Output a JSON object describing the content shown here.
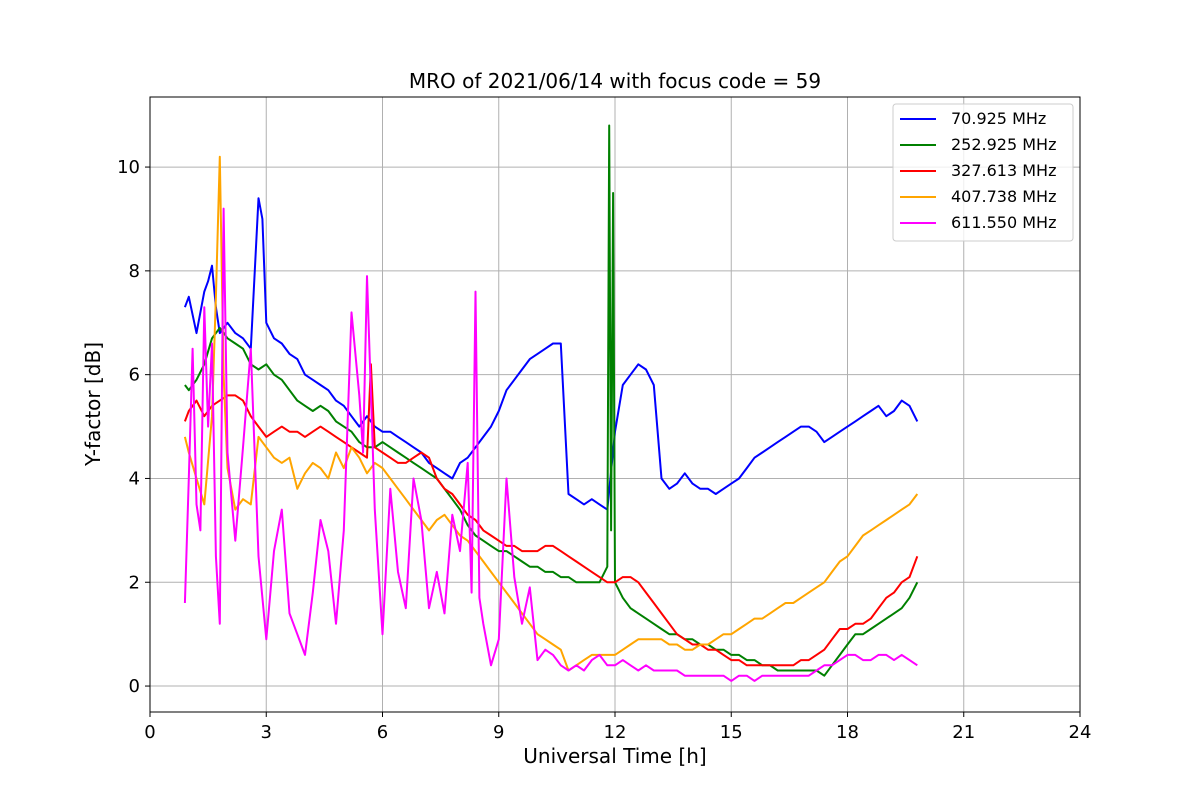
{
  "chart_data": {
    "type": "line",
    "title": "MRO of 2021/06/14 with focus code = 59",
    "xlabel": "Universal Time [h]",
    "ylabel": "Y-factor [dB]",
    "xlim": [
      0,
      24
    ],
    "ylim": [
      -0.5,
      11.35
    ],
    "xticks": [
      0,
      3,
      6,
      9,
      12,
      15,
      18,
      21,
      24
    ],
    "yticks": [
      0,
      2,
      4,
      6,
      8,
      10
    ],
    "xtick_labels": [
      "0",
      "3",
      "6",
      "9",
      "12",
      "15",
      "18",
      "21",
      "24"
    ],
    "ytick_labels": [
      "0",
      "2",
      "4",
      "6",
      "8",
      "10"
    ],
    "grid": true,
    "legend_position": "top-right",
    "series": [
      {
        "name": "70.925 MHz",
        "color": "#0000ff",
        "x": [
          0.9,
          1.0,
          1.2,
          1.4,
          1.5,
          1.6,
          1.7,
          1.8,
          1.9,
          2.0,
          2.2,
          2.4,
          2.6,
          2.8,
          2.9,
          3.0,
          3.2,
          3.4,
          3.6,
          3.8,
          4.0,
          4.2,
          4.4,
          4.6,
          4.8,
          5.0,
          5.2,
          5.4,
          5.6,
          5.8,
          6.0,
          6.2,
          6.4,
          6.6,
          6.8,
          7.0,
          7.2,
          7.4,
          7.6,
          7.8,
          8.0,
          8.2,
          8.4,
          8.6,
          8.8,
          9.0,
          9.2,
          9.4,
          9.6,
          9.8,
          10.0,
          10.2,
          10.4,
          10.6,
          10.8,
          11.0,
          11.2,
          11.4,
          11.6,
          11.8,
          12.0,
          12.2,
          12.4,
          12.6,
          12.8,
          13.0,
          13.2,
          13.4,
          13.6,
          13.8,
          14.0,
          14.2,
          14.4,
          14.6,
          14.8,
          15.0,
          15.2,
          15.4,
          15.6,
          15.8,
          16.0,
          16.2,
          16.4,
          16.6,
          16.8,
          17.0,
          17.2,
          17.4,
          17.6,
          17.8,
          18.0,
          18.2,
          18.4,
          18.6,
          18.8,
          19.0,
          19.2,
          19.4,
          19.6,
          19.8
        ],
        "values": [
          7.3,
          7.5,
          6.8,
          7.6,
          7.8,
          8.1,
          7.3,
          6.8,
          6.9,
          7.0,
          6.8,
          6.7,
          6.5,
          9.4,
          9.0,
          7.0,
          6.7,
          6.6,
          6.4,
          6.3,
          6.0,
          5.9,
          5.8,
          5.7,
          5.5,
          5.4,
          5.2,
          5.0,
          5.2,
          5.0,
          4.9,
          4.9,
          4.8,
          4.7,
          4.6,
          4.5,
          4.3,
          4.2,
          4.1,
          4.0,
          4.3,
          4.4,
          4.6,
          4.8,
          5.0,
          5.3,
          5.7,
          5.9,
          6.1,
          6.3,
          6.4,
          6.5,
          6.6,
          6.6,
          3.7,
          3.6,
          3.5,
          3.6,
          3.5,
          3.4,
          4.9,
          5.8,
          6.0,
          6.2,
          6.1,
          5.8,
          4.0,
          3.8,
          3.9,
          4.1,
          3.9,
          3.8,
          3.8,
          3.7,
          3.8,
          3.9,
          4.0,
          4.2,
          4.4,
          4.5,
          4.6,
          4.7,
          4.8,
          4.9,
          5.0,
          5.0,
          4.9,
          4.7,
          4.8,
          4.9,
          5.0,
          5.1,
          5.2,
          5.3,
          5.4,
          5.2,
          5.3,
          5.5,
          5.4,
          5.1
        ]
      },
      {
        "name": "252.925 MHz",
        "color": "#008000",
        "x": [
          0.9,
          1.0,
          1.2,
          1.4,
          1.6,
          1.8,
          2.0,
          2.2,
          2.4,
          2.6,
          2.8,
          3.0,
          3.2,
          3.4,
          3.6,
          3.8,
          4.0,
          4.2,
          4.4,
          4.6,
          4.8,
          5.0,
          5.2,
          5.4,
          5.6,
          5.8,
          6.0,
          6.2,
          6.4,
          6.6,
          6.8,
          7.0,
          7.2,
          7.4,
          7.6,
          7.8,
          8.0,
          8.2,
          8.4,
          8.6,
          8.8,
          9.0,
          9.2,
          9.4,
          9.6,
          9.8,
          10.0,
          10.2,
          10.4,
          10.6,
          10.8,
          11.0,
          11.2,
          11.4,
          11.6,
          11.8,
          11.85,
          11.9,
          11.95,
          12.0,
          12.2,
          12.4,
          12.6,
          12.8,
          13.0,
          13.2,
          13.4,
          13.6,
          13.8,
          14.0,
          14.2,
          14.4,
          14.6,
          14.8,
          15.0,
          15.2,
          15.4,
          15.6,
          15.8,
          16.0,
          16.2,
          16.4,
          16.6,
          16.8,
          17.0,
          17.2,
          17.4,
          17.6,
          17.8,
          18.0,
          18.2,
          18.4,
          18.6,
          18.8,
          19.0,
          19.2,
          19.4,
          19.6,
          19.8
        ],
        "values": [
          5.8,
          5.7,
          5.9,
          6.2,
          6.7,
          6.9,
          6.7,
          6.6,
          6.5,
          6.2,
          6.1,
          6.2,
          6.0,
          5.9,
          5.7,
          5.5,
          5.4,
          5.3,
          5.4,
          5.3,
          5.1,
          5.0,
          4.9,
          4.7,
          4.6,
          4.6,
          4.7,
          4.6,
          4.5,
          4.4,
          4.3,
          4.2,
          4.1,
          4.0,
          3.8,
          3.6,
          3.4,
          3.1,
          2.9,
          2.8,
          2.7,
          2.6,
          2.6,
          2.5,
          2.4,
          2.3,
          2.3,
          2.2,
          2.2,
          2.1,
          2.1,
          2.0,
          2.0,
          2.0,
          2.0,
          2.3,
          10.8,
          3.0,
          9.5,
          2.0,
          1.7,
          1.5,
          1.4,
          1.3,
          1.2,
          1.1,
          1.0,
          1.0,
          0.9,
          0.9,
          0.8,
          0.8,
          0.7,
          0.7,
          0.6,
          0.6,
          0.5,
          0.5,
          0.4,
          0.4,
          0.3,
          0.3,
          0.3,
          0.3,
          0.3,
          0.3,
          0.2,
          0.4,
          0.6,
          0.8,
          1.0,
          1.0,
          1.1,
          1.2,
          1.3,
          1.4,
          1.5,
          1.7,
          2.0
        ]
      },
      {
        "name": "327.613 MHz",
        "color": "#ff0000",
        "x": [
          0.9,
          1.0,
          1.2,
          1.4,
          1.6,
          1.8,
          2.0,
          2.2,
          2.4,
          2.6,
          2.8,
          3.0,
          3.2,
          3.4,
          3.6,
          3.8,
          4.0,
          4.2,
          4.4,
          4.6,
          4.8,
          5.0,
          5.2,
          5.4,
          5.6,
          5.7,
          5.8,
          6.0,
          6.2,
          6.4,
          6.6,
          6.8,
          7.0,
          7.2,
          7.4,
          7.6,
          7.8,
          8.0,
          8.2,
          8.4,
          8.6,
          8.8,
          9.0,
          9.2,
          9.4,
          9.6,
          9.8,
          10.0,
          10.2,
          10.4,
          10.6,
          10.8,
          11.0,
          11.2,
          11.4,
          11.6,
          11.8,
          12.0,
          12.2,
          12.4,
          12.6,
          12.8,
          13.0,
          13.2,
          13.4,
          13.6,
          13.8,
          14.0,
          14.2,
          14.4,
          14.6,
          14.8,
          15.0,
          15.2,
          15.4,
          15.6,
          15.8,
          16.0,
          16.2,
          16.4,
          16.6,
          16.8,
          17.0,
          17.2,
          17.4,
          17.6,
          17.8,
          18.0,
          18.2,
          18.4,
          18.6,
          18.8,
          19.0,
          19.2,
          19.4,
          19.6,
          19.8
        ],
        "values": [
          5.1,
          5.3,
          5.5,
          5.2,
          5.4,
          5.5,
          5.6,
          5.6,
          5.5,
          5.2,
          5.0,
          4.8,
          4.9,
          5.0,
          4.9,
          4.9,
          4.8,
          4.9,
          5.0,
          4.9,
          4.8,
          4.7,
          4.6,
          4.5,
          4.4,
          6.2,
          4.6,
          4.5,
          4.4,
          4.3,
          4.3,
          4.4,
          4.5,
          4.4,
          4.0,
          3.8,
          3.7,
          3.5,
          3.3,
          3.2,
          3.0,
          2.9,
          2.8,
          2.7,
          2.7,
          2.6,
          2.6,
          2.6,
          2.7,
          2.7,
          2.6,
          2.5,
          2.4,
          2.3,
          2.2,
          2.1,
          2.0,
          2.0,
          2.1,
          2.1,
          2.0,
          1.8,
          1.6,
          1.4,
          1.2,
          1.0,
          0.9,
          0.8,
          0.8,
          0.7,
          0.7,
          0.6,
          0.5,
          0.5,
          0.4,
          0.4,
          0.4,
          0.4,
          0.4,
          0.4,
          0.4,
          0.5,
          0.5,
          0.6,
          0.7,
          0.9,
          1.1,
          1.1,
          1.2,
          1.2,
          1.3,
          1.5,
          1.7,
          1.8,
          2.0,
          2.1,
          2.5
        ]
      },
      {
        "name": "407.738 MHz",
        "color": "#ffa500",
        "x": [
          0.9,
          1.0,
          1.2,
          1.4,
          1.6,
          1.7,
          1.8,
          1.9,
          2.0,
          2.2,
          2.4,
          2.6,
          2.8,
          3.0,
          3.2,
          3.4,
          3.6,
          3.8,
          4.0,
          4.2,
          4.4,
          4.6,
          4.8,
          5.0,
          5.2,
          5.4,
          5.6,
          5.8,
          6.0,
          6.2,
          6.4,
          6.6,
          6.8,
          7.0,
          7.2,
          7.4,
          7.6,
          7.8,
          8.0,
          8.2,
          8.4,
          8.6,
          8.8,
          9.0,
          9.2,
          9.4,
          9.6,
          9.8,
          10.0,
          10.2,
          10.4,
          10.6,
          10.8,
          11.0,
          11.2,
          11.4,
          11.6,
          11.8,
          12.0,
          12.2,
          12.4,
          12.6,
          12.8,
          13.0,
          13.2,
          13.4,
          13.6,
          13.8,
          14.0,
          14.2,
          14.4,
          14.6,
          14.8,
          15.0,
          15.2,
          15.4,
          15.6,
          15.8,
          16.0,
          16.2,
          16.4,
          16.6,
          16.8,
          17.0,
          17.2,
          17.4,
          17.6,
          17.8,
          18.0,
          18.2,
          18.4,
          18.6,
          18.8,
          19.0,
          19.2,
          19.4,
          19.6,
          19.8
        ],
        "values": [
          4.8,
          4.5,
          4.0,
          3.5,
          5.2,
          7.5,
          10.2,
          6.0,
          4.2,
          3.4,
          3.6,
          3.5,
          4.8,
          4.6,
          4.4,
          4.3,
          4.4,
          3.8,
          4.1,
          4.3,
          4.2,
          4.0,
          4.5,
          4.2,
          4.6,
          4.4,
          4.1,
          4.3,
          4.2,
          4.0,
          3.8,
          3.6,
          3.4,
          3.2,
          3.0,
          3.2,
          3.3,
          3.1,
          2.9,
          2.8,
          2.6,
          2.4,
          2.2,
          2.0,
          1.8,
          1.6,
          1.4,
          1.2,
          1.0,
          0.9,
          0.8,
          0.7,
          0.3,
          0.4,
          0.5,
          0.6,
          0.6,
          0.6,
          0.6,
          0.7,
          0.8,
          0.9,
          0.9,
          0.9,
          0.9,
          0.8,
          0.8,
          0.7,
          0.7,
          0.8,
          0.8,
          0.9,
          1.0,
          1.0,
          1.1,
          1.2,
          1.3,
          1.3,
          1.4,
          1.5,
          1.6,
          1.6,
          1.7,
          1.8,
          1.9,
          2.0,
          2.2,
          2.4,
          2.5,
          2.7,
          2.9,
          3.0,
          3.1,
          3.2,
          3.3,
          3.4,
          3.5,
          3.7
        ]
      },
      {
        "name": "611.550 MHz",
        "color": "#ff00ff",
        "x": [
          0.9,
          1.0,
          1.1,
          1.2,
          1.3,
          1.4,
          1.5,
          1.6,
          1.7,
          1.8,
          1.9,
          2.0,
          2.2,
          2.4,
          2.6,
          2.8,
          3.0,
          3.2,
          3.4,
          3.6,
          3.8,
          4.0,
          4.2,
          4.4,
          4.6,
          4.8,
          5.0,
          5.2,
          5.4,
          5.5,
          5.6,
          5.8,
          6.0,
          6.2,
          6.4,
          6.6,
          6.8,
          7.0,
          7.2,
          7.4,
          7.6,
          7.8,
          8.0,
          8.2,
          8.3,
          8.4,
          8.5,
          8.6,
          8.8,
          9.0,
          9.2,
          9.4,
          9.6,
          9.8,
          10.0,
          10.2,
          10.4,
          10.6,
          10.8,
          11.0,
          11.2,
          11.4,
          11.6,
          11.8,
          12.0,
          12.2,
          12.4,
          12.6,
          12.8,
          13.0,
          13.2,
          13.4,
          13.6,
          13.8,
          14.0,
          14.2,
          14.4,
          14.6,
          14.8,
          15.0,
          15.2,
          15.4,
          15.6,
          15.8,
          16.0,
          16.2,
          16.4,
          16.6,
          16.8,
          17.0,
          17.2,
          17.4,
          17.6,
          17.8,
          18.0,
          18.2,
          18.4,
          18.6,
          18.8,
          19.0,
          19.2,
          19.4,
          19.6,
          19.8
        ],
        "values": [
          1.6,
          4.0,
          6.5,
          3.5,
          3.0,
          7.3,
          5.0,
          6.6,
          2.5,
          1.2,
          9.2,
          4.5,
          2.8,
          4.6,
          6.5,
          2.5,
          0.9,
          2.6,
          3.4,
          1.4,
          1.0,
          0.6,
          1.8,
          3.2,
          2.6,
          1.2,
          3.0,
          7.2,
          5.6,
          4.5,
          7.9,
          3.4,
          1.0,
          3.8,
          2.2,
          1.5,
          4.0,
          3.2,
          1.5,
          2.2,
          1.4,
          3.3,
          2.6,
          4.3,
          1.8,
          7.6,
          1.7,
          1.2,
          0.4,
          0.9,
          4.0,
          2.1,
          1.2,
          1.9,
          0.5,
          0.7,
          0.6,
          0.4,
          0.3,
          0.4,
          0.3,
          0.5,
          0.6,
          0.4,
          0.4,
          0.5,
          0.4,
          0.3,
          0.4,
          0.3,
          0.3,
          0.3,
          0.3,
          0.2,
          0.2,
          0.2,
          0.2,
          0.2,
          0.2,
          0.1,
          0.2,
          0.2,
          0.1,
          0.2,
          0.2,
          0.2,
          0.2,
          0.2,
          0.2,
          0.2,
          0.3,
          0.4,
          0.4,
          0.5,
          0.6,
          0.6,
          0.5,
          0.5,
          0.6,
          0.6,
          0.5,
          0.6,
          0.5,
          0.4
        ]
      }
    ]
  }
}
